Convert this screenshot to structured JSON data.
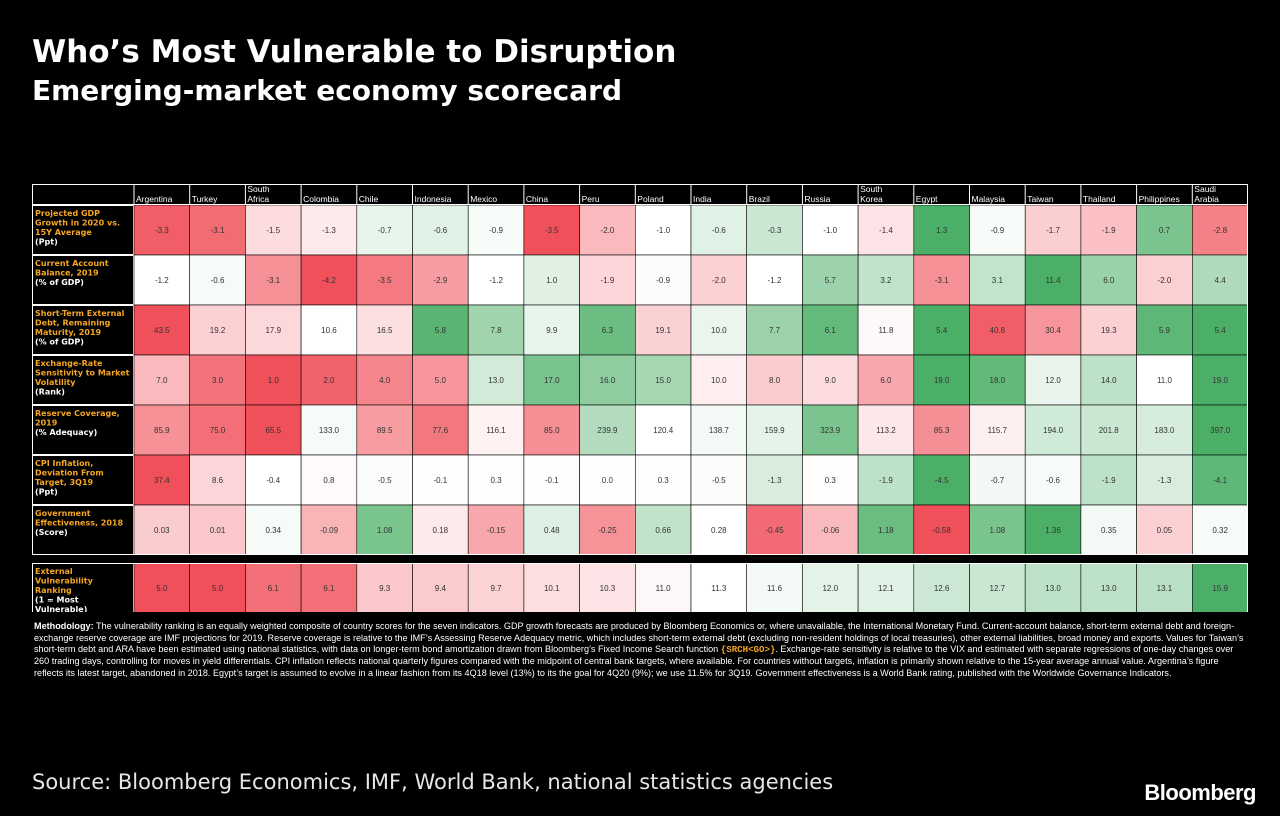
{
  "title": "Who’s Most Vulnerable to Disruption",
  "subtitle": "Emerging-market economy scorecard",
  "source": "Source: Bloomberg Economics, IMF, World Bank, national statistics agencies",
  "brand": "Bloomberg",
  "methodology": {
    "label": "Methodology:",
    "part1": " The vulnerability ranking is an equally weighted composite of country scores for the seven indicators. GDP growth forecasts are produced by Bloomberg Economics or, where unavailable, the International Monetary Fund. Current-account balance, short-term external debt and foreign-exchange reserve coverage are IMF projections for 2019. Reserve coverage is relative to the IMF’s Assessing Reserve Adequacy metric, which includes short-term external debt (excluding non-resident holdings of local treasuries), other external liabilities, broad money and exports. Values for Taiwan’s short-term debt and ARA have been estimated using national statistics, with data on longer-term bond amortization drawn from Bloomberg’s Fixed Income Search function ",
    "code": "{SRCH<GO>}",
    "part2": ". Exchange-rate sensitivity is relative to the VIX and estimated with separate regressions of one-day changes over 260 trading days, controlling for moves in yield differentials. CPI inflation reflects national quarterly figures compared with the midpoint of central bank targets, where available. For countries without targets, inflation is primarily shown relative to the 15-year average annual value. Argentina’s figure reflects its latest target, abandoned in 2018. Egypt’s target is assumed to evolve in a linear fashion from its 4Q18 level (13%) to its the goal for 4Q20 (9%); we use 11.5% for 3Q19. Government effectiveness is a World Bank rating, published with the Worldwide Governance Indicators."
  },
  "colors": {
    "background": "#000000",
    "label_text": "#f5a623",
    "low_strong": "#f0505a",
    "high_strong": "#4caf67",
    "neutral": "#ffffff"
  },
  "chart_data": {
    "type": "heatmap",
    "columns": [
      "Argentina",
      "Turkey",
      "South Africa",
      "Colombia",
      "Chile",
      "Indonesia",
      "Mexico",
      "China",
      "Peru",
      "Poland",
      "India",
      "Brazil",
      "Russia",
      "South Korea",
      "Egypt",
      "Malaysia",
      "Taiwan",
      "Thailand",
      "Philippines",
      "Saudi Arabia"
    ],
    "rows": [
      {
        "label": [
          "Projected GDP",
          "Growth in 2020 vs.",
          "15Y Average"
        ],
        "unit": "(Ppt)",
        "values": [
          "-3.3",
          "-3.1",
          "-1.5",
          "-1.3",
          "-0.7",
          "-0.6",
          "-0.9",
          "-3.5",
          "-2.0",
          "-1.0",
          "-0.6",
          "-0.3",
          "-1.0",
          "-1.4",
          "1.3",
          "-0.9",
          "-1.7",
          "-1.9",
          "0.7",
          "-2.8"
        ],
        "higher_is_better": true
      },
      {
        "label": [
          "Current Account",
          "Balance, 2019"
        ],
        "unit": "(% of GDP)",
        "values": [
          "-1.2",
          "-0.6",
          "-3.1",
          "-4.2",
          "-3.5",
          "-2.9",
          "-1.2",
          "1.0",
          "-1.9",
          "-0.9",
          "-2.0",
          "-1.2",
          "5.7",
          "3.2",
          "-3.1",
          "3.1",
          "11.4",
          "6.0",
          "-2.0",
          "4.4"
        ],
        "higher_is_better": true
      },
      {
        "label": [
          "Short-Term External",
          "Debt, Remaining",
          "Maturity, 2019"
        ],
        "unit": "(% of GDP)",
        "values": [
          "43.5",
          "19.2",
          "17.9",
          "10.6",
          "16.5",
          "5.8",
          "7.8",
          "9.9",
          "6.3",
          "19.1",
          "10.0",
          "7.7",
          "6.1",
          "11.8",
          "5.4",
          "40.8",
          "30.4",
          "19.3",
          "5.9",
          "5.4"
        ],
        "higher_is_better": false
      },
      {
        "label": [
          "Exchange-Rate",
          "Sensitivity to Market",
          "Volatility"
        ],
        "unit": "(Rank)",
        "values": [
          "7.0",
          "3.0",
          "1.0",
          "2.0",
          "4.0",
          "5.0",
          "13.0",
          "17.0",
          "16.0",
          "15.0",
          "10.0",
          "8.0",
          "9.0",
          "6.0",
          "19.0",
          "18.0",
          "12.0",
          "14.0",
          "11.0",
          "19.0"
        ],
        "higher_is_better": true
      },
      {
        "label": [
          "Reserve Coverage,",
          "2019"
        ],
        "unit": "(% Adequacy)",
        "values": [
          "85.9",
          "75.0",
          "65.5",
          "133.0",
          "89.5",
          "77.6",
          "116.1",
          "85.0",
          "239.9",
          "120.4",
          "138.7",
          "159.9",
          "323.9",
          "113.2",
          "85.3",
          "115.7",
          "194.0",
          "201.8",
          "183.0",
          "397.0"
        ],
        "higher_is_better": true
      },
      {
        "label": [
          "CPI Inflation,",
          "Deviation From",
          "Target, 3Q19"
        ],
        "unit": "(Ppt)",
        "values": [
          "37.4",
          "8.6",
          "-0.4",
          "0.8",
          "-0.5",
          "-0.1",
          "0.3",
          "-0.1",
          "0.0",
          "0.3",
          "-0.5",
          "-1.3",
          "0.3",
          "-1.9",
          "-4.5",
          "-0.7",
          "-0.6",
          "-1.9",
          "-1.3",
          "-4.1"
        ],
        "higher_is_better": false
      },
      {
        "label": [
          "Government",
          "Effectiveness, 2018"
        ],
        "unit": "(Score)",
        "values": [
          "0.03",
          "0.01",
          "0.34",
          "-0.09",
          "1.08",
          "0.18",
          "-0.15",
          "0.48",
          "-0.25",
          "0.66",
          "0.28",
          "-0.45",
          "-0.06",
          "1.18",
          "-0.58",
          "1.08",
          "1.36",
          "0.35",
          "0.05",
          "0.32"
        ],
        "higher_is_better": true
      }
    ],
    "summary_row": {
      "label": [
        "External",
        "Vulnerability",
        "Ranking"
      ],
      "unit": "(1 = Most",
      "unit2": "Vulnerable)",
      "values": [
        "5.0",
        "5.0",
        "6.1",
        "6.1",
        "9.3",
        "9.4",
        "9.7",
        "10.1",
        "10.3",
        "11.0",
        "11.3",
        "11.6",
        "12.0",
        "12.1",
        "12.6",
        "12.7",
        "13.0",
        "13.0",
        "13.1",
        "15.9"
      ],
      "higher_is_better": true
    }
  }
}
